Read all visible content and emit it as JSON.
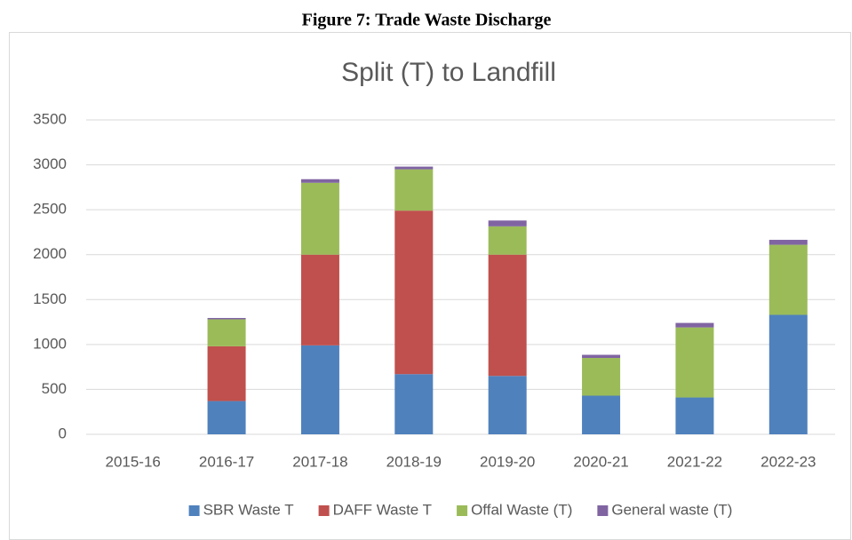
{
  "caption": "Figure 7: Trade Waste Discharge",
  "chart_data": {
    "type": "bar",
    "stacked": true,
    "title": "Split (T) to Landfill",
    "categories": [
      "2015-16",
      "2016-17",
      "2017-18",
      "2018-19",
      "2019-20",
      "2020-21",
      "2021-22",
      "2022-23"
    ],
    "series": [
      {
        "name": "SBR Waste T",
        "color": "#4f81bd",
        "values": [
          0,
          370,
          990,
          670,
          650,
          430,
          410,
          1330
        ]
      },
      {
        "name": "DAFF Waste T",
        "color": "#c0504d",
        "values": [
          0,
          610,
          1010,
          1820,
          1350,
          0,
          0,
          0
        ]
      },
      {
        "name": "Offal Waste (T)",
        "color": "#9bbb59",
        "values": [
          0,
          300,
          800,
          460,
          315,
          420,
          780,
          780
        ]
      },
      {
        "name": "General waste (T)",
        "color": "#8064a2",
        "values": [
          0,
          15,
          40,
          30,
          65,
          35,
          50,
          55
        ]
      }
    ],
    "ylim": [
      0,
      3500
    ],
    "yticks": [
      0,
      500,
      1000,
      1500,
      2000,
      2500,
      3000,
      3500
    ],
    "grid": true,
    "legend": "bottom"
  }
}
